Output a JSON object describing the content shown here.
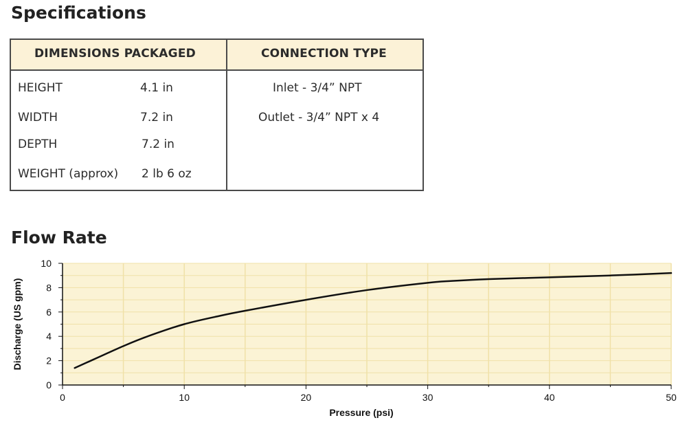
{
  "headings": {
    "specifications": "Specifications",
    "flow_rate": "Flow Rate"
  },
  "spec_table": {
    "col1_header": "DIMENSIONS PACKAGED",
    "col2_header": "CONNECTION TYPE",
    "rows": [
      {
        "label": "HEIGHT",
        "value": "4.1 in"
      },
      {
        "label": "WIDTH",
        "value": "7.2 in"
      },
      {
        "label": "DEPTH",
        "value": "7.2 in"
      },
      {
        "label": "WEIGHT (approx)",
        "value": "2 lb 6 oz"
      }
    ],
    "connections": [
      "Inlet - 3/4” NPT",
      "Outlet - 3/4” NPT x 4"
    ]
  },
  "colors": {
    "header_band": "#fcf2d7",
    "plot_background": "#fbf3d5",
    "grid": "#f0e1a8",
    "line": "#111111",
    "border": "#4a4a4a"
  },
  "chart_data": {
    "type": "line",
    "title": "Flow Rate",
    "xlabel": "Pressure (psi)",
    "ylabel": "Discharge (US gpm)",
    "xlim": [
      0,
      50
    ],
    "ylim": [
      0,
      10
    ],
    "x_ticks": [
      0,
      10,
      20,
      30,
      40,
      50
    ],
    "y_ticks": [
      0,
      2,
      4,
      6,
      8,
      10
    ],
    "grid": true,
    "legend": "none",
    "series": [
      {
        "x": [
          1,
          3,
          5,
          7,
          10,
          13,
          15,
          20,
          25,
          30,
          32,
          35,
          40,
          45,
          50
        ],
        "y": [
          1.4,
          2.3,
          3.2,
          4.0,
          5.0,
          5.7,
          6.1,
          7.0,
          7.8,
          8.4,
          8.55,
          8.7,
          8.85,
          9.0,
          9.2
        ]
      }
    ]
  }
}
